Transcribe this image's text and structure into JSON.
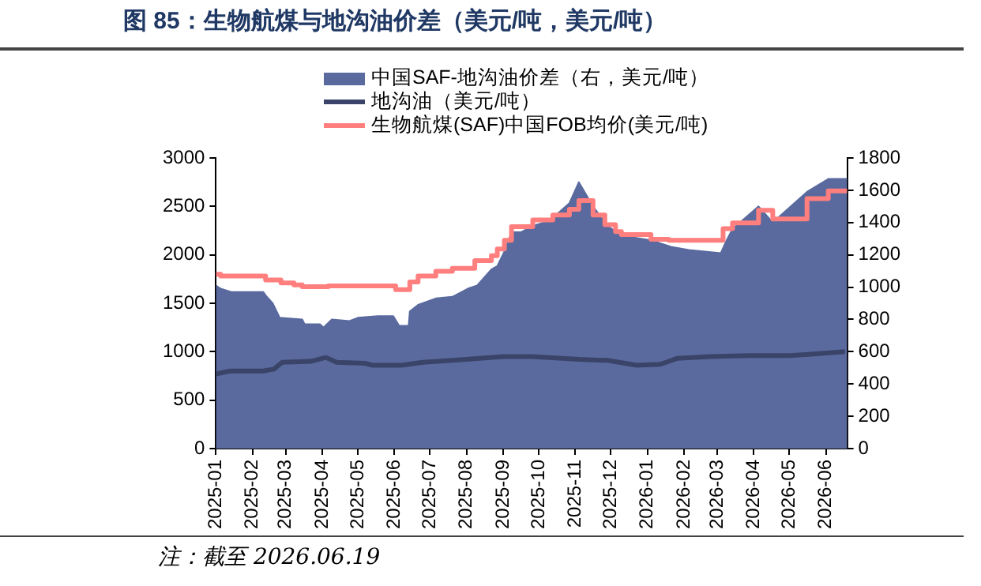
{
  "chart_data": {
    "type": "area",
    "title": "图 85：生物航煤与地沟油价差（美元/吨，美元/吨）",
    "annotations": [
      "注：截至 2026.06.19"
    ],
    "xlim": [
      "2025-01-01",
      "2026-06-19"
    ],
    "xticks": [
      "2025-01",
      "2025-02",
      "2025-03",
      "2025-04",
      "2025-05",
      "2025-06",
      "2025-07",
      "2025-08",
      "2025-09",
      "2025-10",
      "2025-11",
      "2025-12",
      "2026-01",
      "2026-02",
      "2026-03",
      "2026-04",
      "2026-05",
      "2026-06"
    ],
    "ylim": [
      0,
      3000
    ],
    "yticks": [
      0,
      500,
      1000,
      1500,
      2000,
      2500,
      3000
    ],
    "y2lim": [
      0,
      1800
    ],
    "y2ticks": [
      0,
      200,
      400,
      600,
      800,
      1000,
      1200,
      1400,
      1600,
      1800
    ],
    "grid": false,
    "legend": "top",
    "marker": "none",
    "series": [
      {
        "name": "中国SAF-地沟油价差（右，美元/吨）",
        "axis": "y2",
        "color": "#5a6a9e",
        "x": [
          "2025-01-01",
          "2025-01-05",
          "2025-01-14",
          "2025-02-10",
          "2025-02-13",
          "2025-02-18",
          "2025-02-24",
          "2025-03-15",
          "2025-03-17",
          "2025-03-30",
          "2025-04-02",
          "2025-04-09",
          "2025-04-24",
          "2025-05-01",
          "2025-05-18",
          "2025-05-31",
          "2025-06-05",
          "2025-06-13",
          "2025-06-14",
          "2025-06-21",
          "2025-07-06",
          "2025-07-20",
          "2025-08-02",
          "2025-08-10",
          "2025-08-22",
          "2025-08-27",
          "2025-09-02",
          "2025-09-08",
          "2025-09-16",
          "2025-09-26",
          "2025-10-10",
          "2025-10-27",
          "2025-11-04",
          "2025-11-16",
          "2025-11-28",
          "2025-12-10",
          "2026-01-04",
          "2026-01-21",
          "2026-02-05",
          "2026-03-04",
          "2026-03-09",
          "2026-03-14",
          "2026-04-05",
          "2026-04-17",
          "2026-05-16",
          "2026-06-03",
          "2026-06-19"
        ],
        "values": [
          1010,
          990,
          970,
          970,
          940,
          900,
          810,
          800,
          770,
          770,
          750,
          800,
          790,
          810,
          820,
          820,
          760,
          760,
          850,
          890,
          930,
          940,
          990,
          1010,
          1110,
          1130,
          1220,
          1340,
          1340,
          1380,
          1410,
          1520,
          1650,
          1500,
          1380,
          1320,
          1290,
          1250,
          1230,
          1210,
          1290,
          1360,
          1500,
          1400,
          1590,
          1670,
          1670
        ]
      },
      {
        "name": "地沟油（美元/吨）",
        "type": "line",
        "color": "#3a4468",
        "x": [
          "2025-01-01",
          "2025-01-13",
          "2025-02-10",
          "2025-02-19",
          "2025-02-26",
          "2025-03-22",
          "2025-04-04",
          "2025-04-13",
          "2025-05-07",
          "2025-05-13",
          "2025-06-07",
          "2025-06-25",
          "2025-08-01",
          "2025-09-01",
          "2025-09-25",
          "2025-10-10",
          "2025-11-04",
          "2025-11-28",
          "2025-12-23",
          "2026-01-12",
          "2026-01-26",
          "2026-02-23",
          "2026-03-29",
          "2026-05-02",
          "2026-05-26",
          "2026-06-17"
        ],
        "values": [
          770,
          800,
          800,
          820,
          890,
          900,
          940,
          890,
          880,
          860,
          860,
          890,
          920,
          950,
          950,
          940,
          920,
          910,
          860,
          870,
          930,
          950,
          960,
          960,
          980,
          1000
        ]
      },
      {
        "name": "生物航煤(SAF)中国FOB均价(美元/吨)",
        "type": "step",
        "color": "#ff7f7f",
        "x": [
          "2025-01-01",
          "2025-01-05",
          "2025-02-12",
          "2025-02-25",
          "2025-03-08",
          "2025-03-15",
          "2025-04-06",
          "2025-06-02",
          "2025-06-14",
          "2025-06-21",
          "2025-07-06",
          "2025-07-20",
          "2025-08-08",
          "2025-08-22",
          "2025-08-27",
          "2025-09-02",
          "2025-09-08",
          "2025-09-26",
          "2025-10-13",
          "2025-10-27",
          "2025-11-04",
          "2025-11-16",
          "2025-11-26",
          "2025-12-05",
          "2025-12-10",
          "2026-01-04",
          "2026-01-19",
          "2026-03-06",
          "2026-03-14",
          "2026-04-05",
          "2026-04-17",
          "2026-05-16",
          "2026-06-03",
          "2026-06-19"
        ],
        "values": [
          1800,
          1780,
          1740,
          1710,
          1690,
          1670,
          1680,
          1640,
          1720,
          1780,
          1830,
          1860,
          1940,
          1990,
          2060,
          2150,
          2290,
          2360,
          2410,
          2470,
          2560,
          2410,
          2310,
          2240,
          2210,
          2160,
          2150,
          2270,
          2330,
          2460,
          2370,
          2580,
          2660,
          2660
        ]
      }
    ]
  }
}
